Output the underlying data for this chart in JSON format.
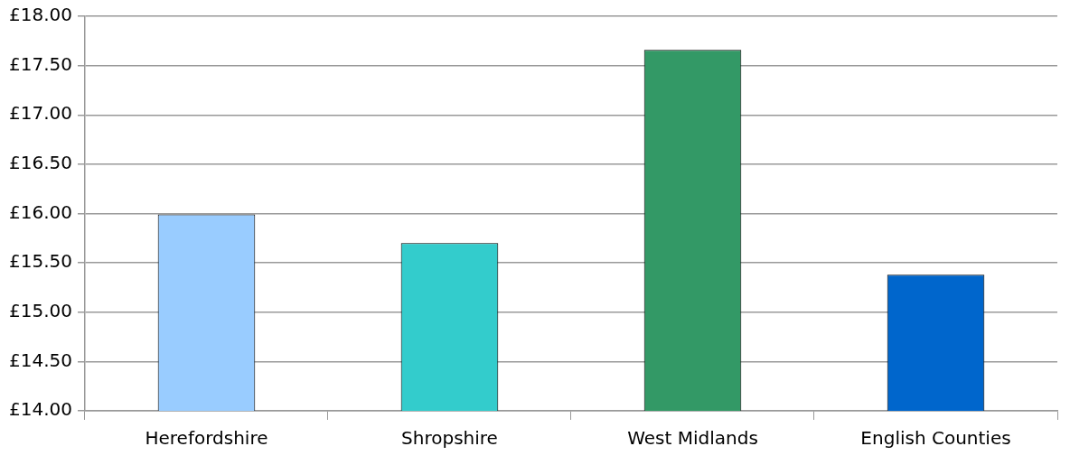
{
  "chart_data": {
    "type": "bar",
    "categories": [
      "Herefordshire",
      "Shropshire",
      "West Midlands",
      "English Counties"
    ],
    "values": [
      15.99,
      15.7,
      17.66,
      15.38
    ],
    "colors": [
      "#99ccff",
      "#33cccc",
      "#339966",
      "#0066cc"
    ],
    "ylim": [
      14,
      18
    ],
    "yticks": [
      {
        "value": 14,
        "label": "£14.00"
      },
      {
        "value": 14.5,
        "label": "£14.50"
      },
      {
        "value": 15,
        "label": "£15.00"
      },
      {
        "value": 15.5,
        "label": "£15.50"
      },
      {
        "value": 16,
        "label": "£16.00"
      },
      {
        "value": 16.5,
        "label": "£16.50"
      },
      {
        "value": 17,
        "label": "£17.00"
      },
      {
        "value": 17.5,
        "label": "£17.50"
      },
      {
        "value": 18,
        "label": "£18.00"
      }
    ],
    "grid": "y",
    "legend": false
  }
}
